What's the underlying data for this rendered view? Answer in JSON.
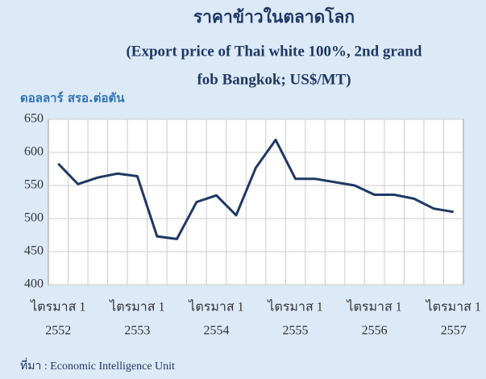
{
  "chart_data": {
    "type": "line",
    "title": "ราคาข้าวในตลาดโลก",
    "subtitle": [
      "(Export price of Thai white 100%, 2nd  grand",
      "fob Bangkok; US$/MT)"
    ],
    "y_label": "ดอลลาร์ สรอ.ต่อตัน",
    "source": "ที่มา : Economic Intelligence Unit",
    "categories": [
      [
        "ไตรมาส 1",
        "2552"
      ],
      null,
      null,
      null,
      [
        "ไตรมาส 1",
        "2553"
      ],
      null,
      null,
      null,
      [
        "ไตรมาส 1",
        "2554"
      ],
      null,
      null,
      null,
      [
        "ไตรมาส 1",
        "2555"
      ],
      null,
      null,
      null,
      [
        "ไตรมาส 1",
        "2556"
      ],
      null,
      null,
      null,
      [
        "ไตรมาส 1",
        "2557"
      ]
    ],
    "series": [
      {
        "color": "#1f3864",
        "values": [
          583,
          552,
          562,
          568,
          564,
          473,
          469,
          525,
          535,
          505,
          577,
          619,
          560,
          560,
          555,
          550,
          536,
          536,
          530,
          515,
          510
        ]
      }
    ],
    "ylim": [
      400,
      650
    ],
    "yticks": [
      400,
      450,
      500,
      550,
      600,
      650
    ],
    "grid": true
  }
}
